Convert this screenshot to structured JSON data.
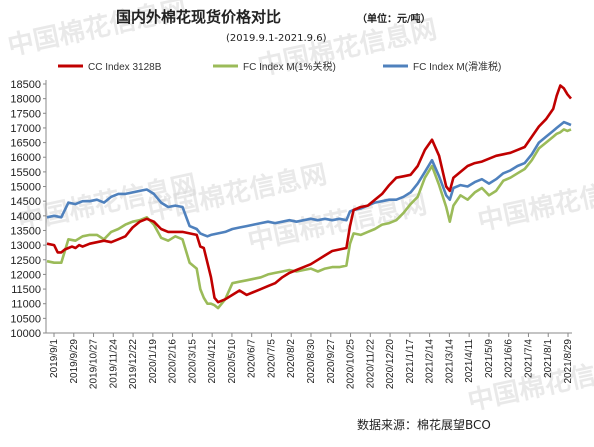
{
  "header": {
    "title": "国内外棉花现货价格对比",
    "unit": "（单位：元/吨）",
    "subtitle": "(2019.9.1-2021.9.6)"
  },
  "source": "数据来源：棉花展望BCO",
  "watermark": "中国棉花信息网",
  "chart_data": {
    "type": "line",
    "title": "国内外棉花现货价格对比",
    "subtitle": "(2019.9.1-2021.9.6)",
    "ylabel": "",
    "xlabel": "",
    "ylim": [
      10000,
      18500
    ],
    "ytick_step": 500,
    "grid": false,
    "legend_position": "top",
    "x_tick_labels": [
      "2019/9/1",
      "2019/9/29",
      "2019/10/27",
      "2019/11/24",
      "2019/12/22",
      "2020/1/19",
      "2020/2/16",
      "2020/3/15",
      "2020/4/12",
      "2020/5/10",
      "2020/6/7",
      "2020/7/5",
      "2020/8/2",
      "2020/8/30",
      "2020/9/27",
      "2020/10/25",
      "2020/11/22",
      "2020/12/20",
      "2021/1/17",
      "2021/2/14",
      "2021/3/14",
      "2021/4/11",
      "2021/5/9",
      "2021/6/6",
      "2021/7/4",
      "2021/8/1",
      "2021/8/29"
    ],
    "series": [
      {
        "name": "CC Index 3128B",
        "color": "#c00000",
        "values": [
          [
            0,
            13050
          ],
          [
            2,
            13000
          ],
          [
            3,
            12750
          ],
          [
            4,
            12750
          ],
          [
            5,
            12850
          ],
          [
            6,
            12900
          ],
          [
            7,
            12950
          ],
          [
            8,
            12900
          ],
          [
            9,
            13000
          ],
          [
            10,
            12950
          ],
          [
            12,
            13050
          ],
          [
            14,
            13100
          ],
          [
            16,
            13150
          ],
          [
            18,
            13100
          ],
          [
            20,
            13200
          ],
          [
            22,
            13300
          ],
          [
            24,
            13600
          ],
          [
            26,
            13800
          ],
          [
            28,
            13900
          ],
          [
            30,
            13800
          ],
          [
            32,
            13550
          ],
          [
            34,
            13450
          ],
          [
            36,
            13450
          ],
          [
            38,
            13450
          ],
          [
            40,
            13400
          ],
          [
            42,
            13350
          ],
          [
            43,
            12950
          ],
          [
            44,
            12900
          ],
          [
            46,
            11900
          ],
          [
            47,
            11200
          ],
          [
            48,
            11050
          ],
          [
            50,
            11150
          ],
          [
            52,
            11300
          ],
          [
            54,
            11450
          ],
          [
            56,
            11300
          ],
          [
            58,
            11400
          ],
          [
            60,
            11500
          ],
          [
            62,
            11600
          ],
          [
            64,
            11700
          ],
          [
            66,
            11900
          ],
          [
            68,
            12050
          ],
          [
            70,
            12150
          ],
          [
            72,
            12250
          ],
          [
            74,
            12350
          ],
          [
            76,
            12500
          ],
          [
            78,
            12650
          ],
          [
            80,
            12800
          ],
          [
            82,
            12850
          ],
          [
            84,
            12900
          ],
          [
            85,
            13650
          ],
          [
            86,
            14200
          ],
          [
            88,
            14300
          ],
          [
            90,
            14350
          ],
          [
            92,
            14550
          ],
          [
            94,
            14750
          ],
          [
            96,
            15050
          ],
          [
            98,
            15300
          ],
          [
            100,
            15350
          ],
          [
            102,
            15400
          ],
          [
            104,
            15700
          ],
          [
            106,
            16250
          ],
          [
            108,
            16600
          ],
          [
            110,
            16050
          ],
          [
            112,
            15000
          ],
          [
            113,
            14850
          ],
          [
            114,
            15300
          ],
          [
            116,
            15500
          ],
          [
            118,
            15700
          ],
          [
            120,
            15800
          ],
          [
            122,
            15850
          ],
          [
            124,
            15950
          ],
          [
            126,
            16050
          ],
          [
            128,
            16100
          ],
          [
            130,
            16150
          ],
          [
            132,
            16250
          ],
          [
            134,
            16350
          ],
          [
            136,
            16700
          ],
          [
            138,
            17050
          ],
          [
            140,
            17300
          ],
          [
            142,
            17650
          ],
          [
            143,
            18100
          ],
          [
            144,
            18450
          ],
          [
            145,
            18350
          ],
          [
            146,
            18150
          ],
          [
            147,
            18000
          ]
        ]
      },
      {
        "name": "FC Index M(1%关税)",
        "color": "#9bbb59",
        "values": [
          [
            0,
            12450
          ],
          [
            2,
            12400
          ],
          [
            4,
            12400
          ],
          [
            6,
            13200
          ],
          [
            8,
            13150
          ],
          [
            10,
            13300
          ],
          [
            12,
            13350
          ],
          [
            14,
            13350
          ],
          [
            16,
            13200
          ],
          [
            18,
            13450
          ],
          [
            20,
            13550
          ],
          [
            22,
            13700
          ],
          [
            24,
            13800
          ],
          [
            26,
            13850
          ],
          [
            28,
            13950
          ],
          [
            30,
            13700
          ],
          [
            32,
            13250
          ],
          [
            34,
            13150
          ],
          [
            36,
            13300
          ],
          [
            38,
            13200
          ],
          [
            40,
            12400
          ],
          [
            42,
            12200
          ],
          [
            43,
            11500
          ],
          [
            44,
            11200
          ],
          [
            45,
            11000
          ],
          [
            46,
            11000
          ],
          [
            47,
            10950
          ],
          [
            48,
            10850
          ],
          [
            50,
            11150
          ],
          [
            52,
            11700
          ],
          [
            54,
            11750
          ],
          [
            56,
            11800
          ],
          [
            58,
            11850
          ],
          [
            60,
            11900
          ],
          [
            62,
            12000
          ],
          [
            64,
            12050
          ],
          [
            66,
            12100
          ],
          [
            68,
            12150
          ],
          [
            70,
            12100
          ],
          [
            72,
            12150
          ],
          [
            74,
            12200
          ],
          [
            76,
            12100
          ],
          [
            78,
            12200
          ],
          [
            80,
            12250
          ],
          [
            82,
            12250
          ],
          [
            84,
            12300
          ],
          [
            85,
            13050
          ],
          [
            86,
            13400
          ],
          [
            88,
            13350
          ],
          [
            90,
            13450
          ],
          [
            92,
            13550
          ],
          [
            94,
            13700
          ],
          [
            96,
            13750
          ],
          [
            98,
            13850
          ],
          [
            100,
            14100
          ],
          [
            102,
            14400
          ],
          [
            104,
            14650
          ],
          [
            106,
            15300
          ],
          [
            108,
            15700
          ],
          [
            110,
            15050
          ],
          [
            112,
            14300
          ],
          [
            113,
            13800
          ],
          [
            114,
            14350
          ],
          [
            116,
            14700
          ],
          [
            118,
            14550
          ],
          [
            120,
            14800
          ],
          [
            122,
            14950
          ],
          [
            124,
            14700
          ],
          [
            126,
            14850
          ],
          [
            128,
            15200
          ],
          [
            130,
            15300
          ],
          [
            132,
            15450
          ],
          [
            134,
            15600
          ],
          [
            136,
            15900
          ],
          [
            138,
            16300
          ],
          [
            140,
            16500
          ],
          [
            142,
            16700
          ],
          [
            143,
            16800
          ],
          [
            144,
            16850
          ],
          [
            145,
            16950
          ],
          [
            146,
            16900
          ],
          [
            147,
            16950
          ]
        ]
      },
      {
        "name": "FC Index M(滑准税)",
        "color": "#4f81bd",
        "values": [
          [
            0,
            13950
          ],
          [
            2,
            14000
          ],
          [
            4,
            13950
          ],
          [
            6,
            14450
          ],
          [
            8,
            14400
          ],
          [
            10,
            14500
          ],
          [
            12,
            14500
          ],
          [
            14,
            14550
          ],
          [
            16,
            14450
          ],
          [
            18,
            14650
          ],
          [
            20,
            14750
          ],
          [
            22,
            14750
          ],
          [
            24,
            14800
          ],
          [
            26,
            14850
          ],
          [
            28,
            14900
          ],
          [
            30,
            14750
          ],
          [
            32,
            14450
          ],
          [
            34,
            14300
          ],
          [
            36,
            14350
          ],
          [
            38,
            14300
          ],
          [
            40,
            13650
          ],
          [
            42,
            13550
          ],
          [
            43,
            13400
          ],
          [
            44,
            13350
          ],
          [
            45,
            13300
          ],
          [
            46,
            13350
          ],
          [
            48,
            13400
          ],
          [
            50,
            13450
          ],
          [
            52,
            13550
          ],
          [
            54,
            13600
          ],
          [
            56,
            13650
          ],
          [
            58,
            13700
          ],
          [
            60,
            13750
          ],
          [
            62,
            13800
          ],
          [
            64,
            13750
          ],
          [
            66,
            13800
          ],
          [
            68,
            13850
          ],
          [
            70,
            13800
          ],
          [
            72,
            13850
          ],
          [
            74,
            13900
          ],
          [
            76,
            13850
          ],
          [
            78,
            13900
          ],
          [
            80,
            13850
          ],
          [
            82,
            13900
          ],
          [
            84,
            13850
          ],
          [
            85,
            14150
          ],
          [
            86,
            14200
          ],
          [
            88,
            14250
          ],
          [
            90,
            14350
          ],
          [
            92,
            14450
          ],
          [
            94,
            14500
          ],
          [
            96,
            14550
          ],
          [
            98,
            14550
          ],
          [
            100,
            14650
          ],
          [
            102,
            14800
          ],
          [
            104,
            15100
          ],
          [
            106,
            15500
          ],
          [
            108,
            15900
          ],
          [
            110,
            15350
          ],
          [
            112,
            14700
          ],
          [
            113,
            14550
          ],
          [
            114,
            14950
          ],
          [
            116,
            15050
          ],
          [
            118,
            15000
          ],
          [
            120,
            15150
          ],
          [
            122,
            15250
          ],
          [
            124,
            15100
          ],
          [
            126,
            15250
          ],
          [
            128,
            15450
          ],
          [
            130,
            15550
          ],
          [
            132,
            15700
          ],
          [
            134,
            15800
          ],
          [
            136,
            16100
          ],
          [
            138,
            16500
          ],
          [
            140,
            16700
          ],
          [
            142,
            16900
          ],
          [
            143,
            17000
          ],
          [
            144,
            17100
          ],
          [
            145,
            17200
          ],
          [
            146,
            17150
          ],
          [
            147,
            17100
          ]
        ]
      }
    ]
  }
}
